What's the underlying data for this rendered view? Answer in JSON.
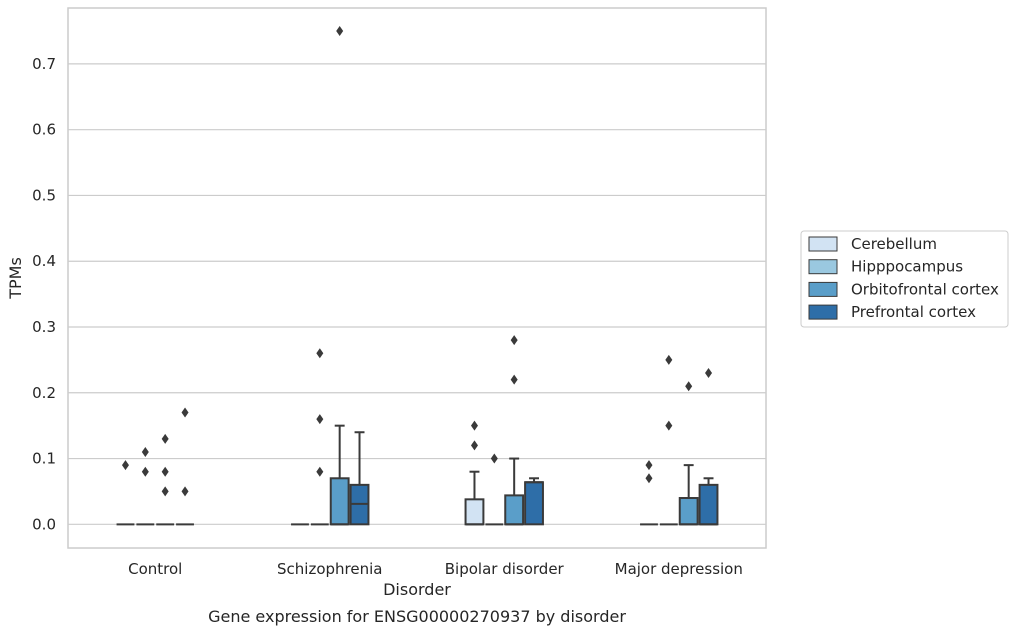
{
  "chart_data": {
    "type": "box",
    "title": "",
    "caption": "Gene expression for ENSG00000270937 by disorder",
    "xlabel": "Disorder",
    "ylabel": "TPMs",
    "ylim": [
      -0.036,
      0.785
    ],
    "yticks": [
      0.0,
      0.1,
      0.2,
      0.3,
      0.4,
      0.5,
      0.6,
      0.7
    ],
    "ytick_labels": [
      "0.0",
      "0.1",
      "0.2",
      "0.3",
      "0.4",
      "0.5",
      "0.6",
      "0.7"
    ],
    "grid": "horizontal",
    "legend_position": "right",
    "categories": [
      "Control",
      "Schizophrenia",
      "Bipolar disorder",
      "Major depression"
    ],
    "series": [
      {
        "name": "Cerebellum",
        "color": "#d2e3f3",
        "boxes": [
          {
            "q1": 0,
            "median": 0,
            "q3": 0,
            "whisker_low": 0,
            "whisker_high": 0,
            "outliers": [
              0.09
            ]
          },
          {
            "q1": 0,
            "median": 0,
            "q3": 0,
            "whisker_low": 0,
            "whisker_high": 0,
            "outliers": []
          },
          {
            "q1": 0,
            "median": 0,
            "q3": 0.038,
            "whisker_low": 0,
            "whisker_high": 0.08,
            "outliers": [
              0.12,
              0.15
            ]
          },
          {
            "q1": 0,
            "median": 0,
            "q3": 0,
            "whisker_low": 0,
            "whisker_high": 0,
            "outliers": [
              0.07,
              0.09
            ]
          }
        ]
      },
      {
        "name": "Hipppocampus",
        "color": "#9ac8e0",
        "boxes": [
          {
            "q1": 0,
            "median": 0,
            "q3": 0,
            "whisker_low": 0,
            "whisker_high": 0,
            "outliers": [
              0.08,
              0.11
            ]
          },
          {
            "q1": 0,
            "median": 0,
            "q3": 0,
            "whisker_low": 0,
            "whisker_high": 0,
            "outliers": [
              0.08,
              0.16,
              0.26
            ]
          },
          {
            "q1": 0,
            "median": 0,
            "q3": 0,
            "whisker_low": 0,
            "whisker_high": 0,
            "outliers": [
              0.1
            ]
          },
          {
            "q1": 0,
            "median": 0,
            "q3": 0,
            "whisker_low": 0,
            "whisker_high": 0,
            "outliers": [
              0.15,
              0.25
            ]
          }
        ]
      },
      {
        "name": "Orbitofrontal cortex",
        "color": "#5a9ec9",
        "boxes": [
          {
            "q1": 0,
            "median": 0,
            "q3": 0,
            "whisker_low": 0,
            "whisker_high": 0,
            "outliers": [
              0.05,
              0.08,
              0.13
            ]
          },
          {
            "q1": 0,
            "median": 0,
            "q3": 0.07,
            "whisker_low": 0,
            "whisker_high": 0.15,
            "outliers": [
              0.75
            ]
          },
          {
            "q1": 0,
            "median": 0,
            "q3": 0.044,
            "whisker_low": 0,
            "whisker_high": 0.1,
            "outliers": [
              0.22,
              0.28
            ]
          },
          {
            "q1": 0,
            "median": 0,
            "q3": 0.04,
            "whisker_low": 0,
            "whisker_high": 0.09,
            "outliers": [
              0.21
            ]
          }
        ]
      },
      {
        "name": "Prefrontal cortex",
        "color": "#2e6ea8",
        "boxes": [
          {
            "q1": 0,
            "median": 0,
            "q3": 0,
            "whisker_low": 0,
            "whisker_high": 0,
            "outliers": [
              0.05,
              0.17
            ]
          },
          {
            "q1": 0,
            "median": 0.031,
            "q3": 0.06,
            "whisker_low": 0,
            "whisker_high": 0.14,
            "outliers": []
          },
          {
            "q1": 0,
            "median": 0.064,
            "q3": 0.064,
            "whisker_low": 0,
            "whisker_high": 0.07,
            "outliers": []
          },
          {
            "q1": 0,
            "median": 0,
            "q3": 0.06,
            "whisker_low": 0,
            "whisker_high": 0.07,
            "outliers": [
              0.23
            ]
          }
        ]
      }
    ]
  }
}
